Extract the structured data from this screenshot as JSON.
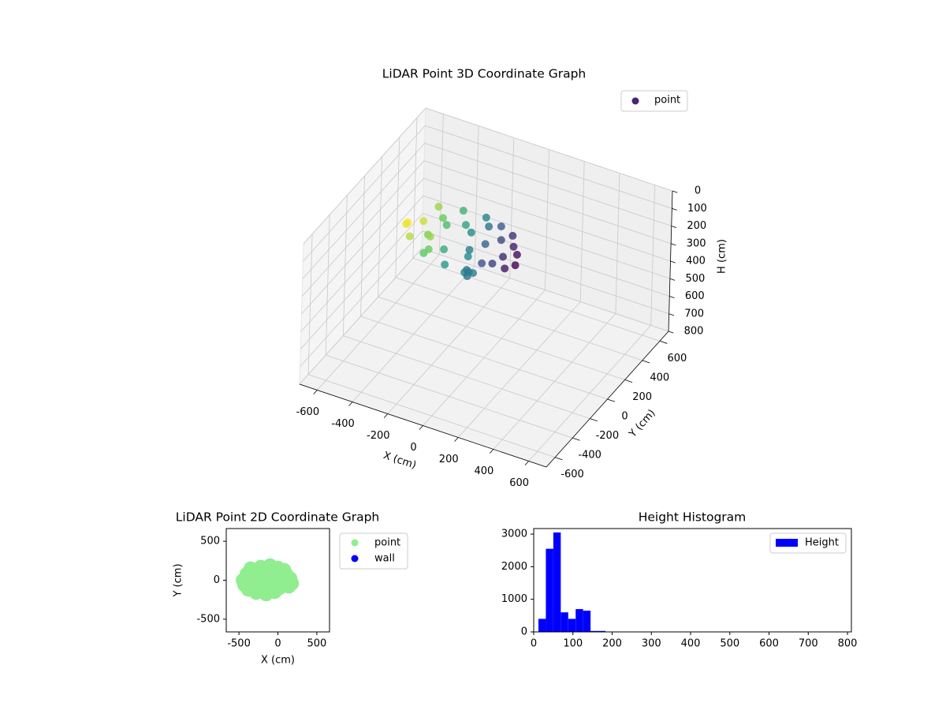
{
  "chart_data": [
    {
      "type": "scatter3d",
      "title": "LiDAR Point 3D Coordinate Graph",
      "x_label": "X (cm)",
      "y_label": "Y (cm)",
      "z_label": "H (cm)",
      "xlim": [
        -700,
        700
      ],
      "ylim": [
        -700,
        700
      ],
      "zlim": [
        800,
        0
      ],
      "xticks": [
        -600,
        -400,
        -200,
        0,
        200,
        400,
        600
      ],
      "yticks": [
        -600,
        -400,
        -200,
        0,
        200,
        400,
        600
      ],
      "zticks": [
        0,
        100,
        200,
        300,
        400,
        500,
        600,
        700,
        800
      ],
      "colormap": "viridis",
      "legend": "upper right",
      "grid": true,
      "series": [
        {
          "name": "point",
          "color": "#482475",
          "x": [
            -450,
            -430,
            -400,
            -380,
            -350,
            -320,
            -300,
            -280,
            -250,
            -220,
            -200,
            -180,
            -150,
            -120,
            -100,
            -80,
            -60,
            -40,
            -20,
            0,
            20,
            40,
            60,
            80,
            100,
            120,
            140,
            160,
            180,
            -100,
            -80,
            -60,
            -120,
            -90,
            -300,
            -350
          ],
          "y": [
            0,
            -60,
            80,
            -120,
            150,
            -30,
            100,
            -160,
            40,
            170,
            -90,
            120,
            -180,
            60,
            190,
            -40,
            140,
            -150,
            20,
            160,
            -100,
            80,
            -60,
            130,
            -20,
            60,
            -80,
            20,
            -40,
            -50,
            10,
            -100,
            30,
            -20,
            -60,
            60
          ],
          "z": [
            180,
            150,
            200,
            170,
            140,
            190,
            160,
            210,
            150,
            130,
            200,
            170,
            220,
            160,
            140,
            190,
            150,
            230,
            170,
            140,
            200,
            160,
            210,
            150,
            180,
            160,
            200,
            170,
            190,
            320,
            350,
            300,
            280,
            330,
            250,
            260
          ]
        }
      ]
    },
    {
      "type": "scatter",
      "title": "LiDAR Point 2D Coordinate Graph",
      "x_label": "X (cm)",
      "y_label": "Y (cm)",
      "xlim": [
        -663,
        663
      ],
      "ylim": [
        -663,
        663
      ],
      "xticks": [
        -500,
        0,
        500
      ],
      "yticks": [
        -500,
        0,
        500
      ],
      "legend": "outside right",
      "series": [
        {
          "name": "point",
          "color": "#90ee90",
          "x": [
            -450,
            -430,
            -400,
            -380,
            -350,
            -320,
            -300,
            -280,
            -250,
            -220,
            -200,
            -180,
            -150,
            -120,
            -100,
            -80,
            -60,
            -40,
            -20,
            0,
            20,
            40,
            60,
            80,
            100,
            120,
            140,
            160,
            180,
            -100,
            -80,
            -60,
            -120,
            -90,
            -300,
            -350
          ],
          "y": [
            0,
            -60,
            80,
            -120,
            150,
            -30,
            100,
            -160,
            40,
            170,
            -90,
            120,
            -180,
            60,
            190,
            -40,
            140,
            -150,
            20,
            160,
            -100,
            80,
            -60,
            130,
            -20,
            60,
            -80,
            20,
            -40,
            -50,
            10,
            -100,
            30,
            -20,
            -60,
            60
          ]
        },
        {
          "name": "wall",
          "color": "#0000ff",
          "x": [],
          "y": []
        }
      ]
    },
    {
      "type": "histogram",
      "title": "Height Histogram",
      "xlim": [
        0,
        810
      ],
      "ylim": [
        0,
        3170
      ],
      "xticks": [
        0,
        100,
        200,
        300,
        400,
        500,
        600,
        700,
        800
      ],
      "yticks": [
        0,
        1000,
        2000,
        3000
      ],
      "legend": "upper right",
      "series": [
        {
          "name": "Height",
          "color": "#0000ff",
          "bins": [
            12,
            31,
            50,
            69,
            88,
            107,
            126,
            145,
            164,
            183
          ],
          "values": [
            400,
            2550,
            3050,
            600,
            400,
            700,
            650,
            30,
            30
          ]
        }
      ]
    }
  ]
}
